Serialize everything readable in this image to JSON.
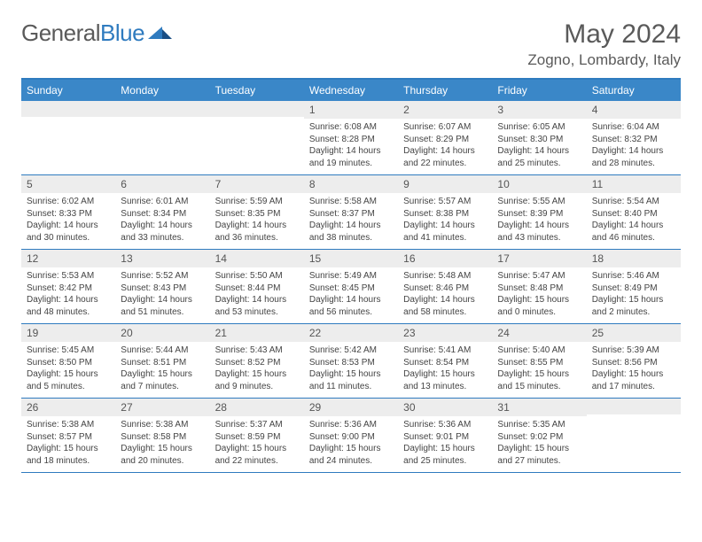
{
  "brand": {
    "part1": "General",
    "part2": "Blue"
  },
  "title": "May 2024",
  "location": "Zogno, Lombardy, Italy",
  "colors": {
    "header_bar": "#3a87c8",
    "accent_border": "#2f7bbf",
    "daynum_bg": "#ededed",
    "text": "#444444",
    "title_text": "#5a5a5a"
  },
  "daynames": [
    "Sunday",
    "Monday",
    "Tuesday",
    "Wednesday",
    "Thursday",
    "Friday",
    "Saturday"
  ],
  "weeks": [
    [
      null,
      null,
      null,
      {
        "n": "1",
        "sr": "6:08 AM",
        "ss": "8:28 PM",
        "dl": "14 hours and 19 minutes."
      },
      {
        "n": "2",
        "sr": "6:07 AM",
        "ss": "8:29 PM",
        "dl": "14 hours and 22 minutes."
      },
      {
        "n": "3",
        "sr": "6:05 AM",
        "ss": "8:30 PM",
        "dl": "14 hours and 25 minutes."
      },
      {
        "n": "4",
        "sr": "6:04 AM",
        "ss": "8:32 PM",
        "dl": "14 hours and 28 minutes."
      }
    ],
    [
      {
        "n": "5",
        "sr": "6:02 AM",
        "ss": "8:33 PM",
        "dl": "14 hours and 30 minutes."
      },
      {
        "n": "6",
        "sr": "6:01 AM",
        "ss": "8:34 PM",
        "dl": "14 hours and 33 minutes."
      },
      {
        "n": "7",
        "sr": "5:59 AM",
        "ss": "8:35 PM",
        "dl": "14 hours and 36 minutes."
      },
      {
        "n": "8",
        "sr": "5:58 AM",
        "ss": "8:37 PM",
        "dl": "14 hours and 38 minutes."
      },
      {
        "n": "9",
        "sr": "5:57 AM",
        "ss": "8:38 PM",
        "dl": "14 hours and 41 minutes."
      },
      {
        "n": "10",
        "sr": "5:55 AM",
        "ss": "8:39 PM",
        "dl": "14 hours and 43 minutes."
      },
      {
        "n": "11",
        "sr": "5:54 AM",
        "ss": "8:40 PM",
        "dl": "14 hours and 46 minutes."
      }
    ],
    [
      {
        "n": "12",
        "sr": "5:53 AM",
        "ss": "8:42 PM",
        "dl": "14 hours and 48 minutes."
      },
      {
        "n": "13",
        "sr": "5:52 AM",
        "ss": "8:43 PM",
        "dl": "14 hours and 51 minutes."
      },
      {
        "n": "14",
        "sr": "5:50 AM",
        "ss": "8:44 PM",
        "dl": "14 hours and 53 minutes."
      },
      {
        "n": "15",
        "sr": "5:49 AM",
        "ss": "8:45 PM",
        "dl": "14 hours and 56 minutes."
      },
      {
        "n": "16",
        "sr": "5:48 AM",
        "ss": "8:46 PM",
        "dl": "14 hours and 58 minutes."
      },
      {
        "n": "17",
        "sr": "5:47 AM",
        "ss": "8:48 PM",
        "dl": "15 hours and 0 minutes."
      },
      {
        "n": "18",
        "sr": "5:46 AM",
        "ss": "8:49 PM",
        "dl": "15 hours and 2 minutes."
      }
    ],
    [
      {
        "n": "19",
        "sr": "5:45 AM",
        "ss": "8:50 PM",
        "dl": "15 hours and 5 minutes."
      },
      {
        "n": "20",
        "sr": "5:44 AM",
        "ss": "8:51 PM",
        "dl": "15 hours and 7 minutes."
      },
      {
        "n": "21",
        "sr": "5:43 AM",
        "ss": "8:52 PM",
        "dl": "15 hours and 9 minutes."
      },
      {
        "n": "22",
        "sr": "5:42 AM",
        "ss": "8:53 PM",
        "dl": "15 hours and 11 minutes."
      },
      {
        "n": "23",
        "sr": "5:41 AM",
        "ss": "8:54 PM",
        "dl": "15 hours and 13 minutes."
      },
      {
        "n": "24",
        "sr": "5:40 AM",
        "ss": "8:55 PM",
        "dl": "15 hours and 15 minutes."
      },
      {
        "n": "25",
        "sr": "5:39 AM",
        "ss": "8:56 PM",
        "dl": "15 hours and 17 minutes."
      }
    ],
    [
      {
        "n": "26",
        "sr": "5:38 AM",
        "ss": "8:57 PM",
        "dl": "15 hours and 18 minutes."
      },
      {
        "n": "27",
        "sr": "5:38 AM",
        "ss": "8:58 PM",
        "dl": "15 hours and 20 minutes."
      },
      {
        "n": "28",
        "sr": "5:37 AM",
        "ss": "8:59 PM",
        "dl": "15 hours and 22 minutes."
      },
      {
        "n": "29",
        "sr": "5:36 AM",
        "ss": "9:00 PM",
        "dl": "15 hours and 24 minutes."
      },
      {
        "n": "30",
        "sr": "5:36 AM",
        "ss": "9:01 PM",
        "dl": "15 hours and 25 minutes."
      },
      {
        "n": "31",
        "sr": "5:35 AM",
        "ss": "9:02 PM",
        "dl": "15 hours and 27 minutes."
      },
      null
    ]
  ],
  "labels": {
    "sunrise": "Sunrise:",
    "sunset": "Sunset:",
    "daylight": "Daylight:"
  }
}
